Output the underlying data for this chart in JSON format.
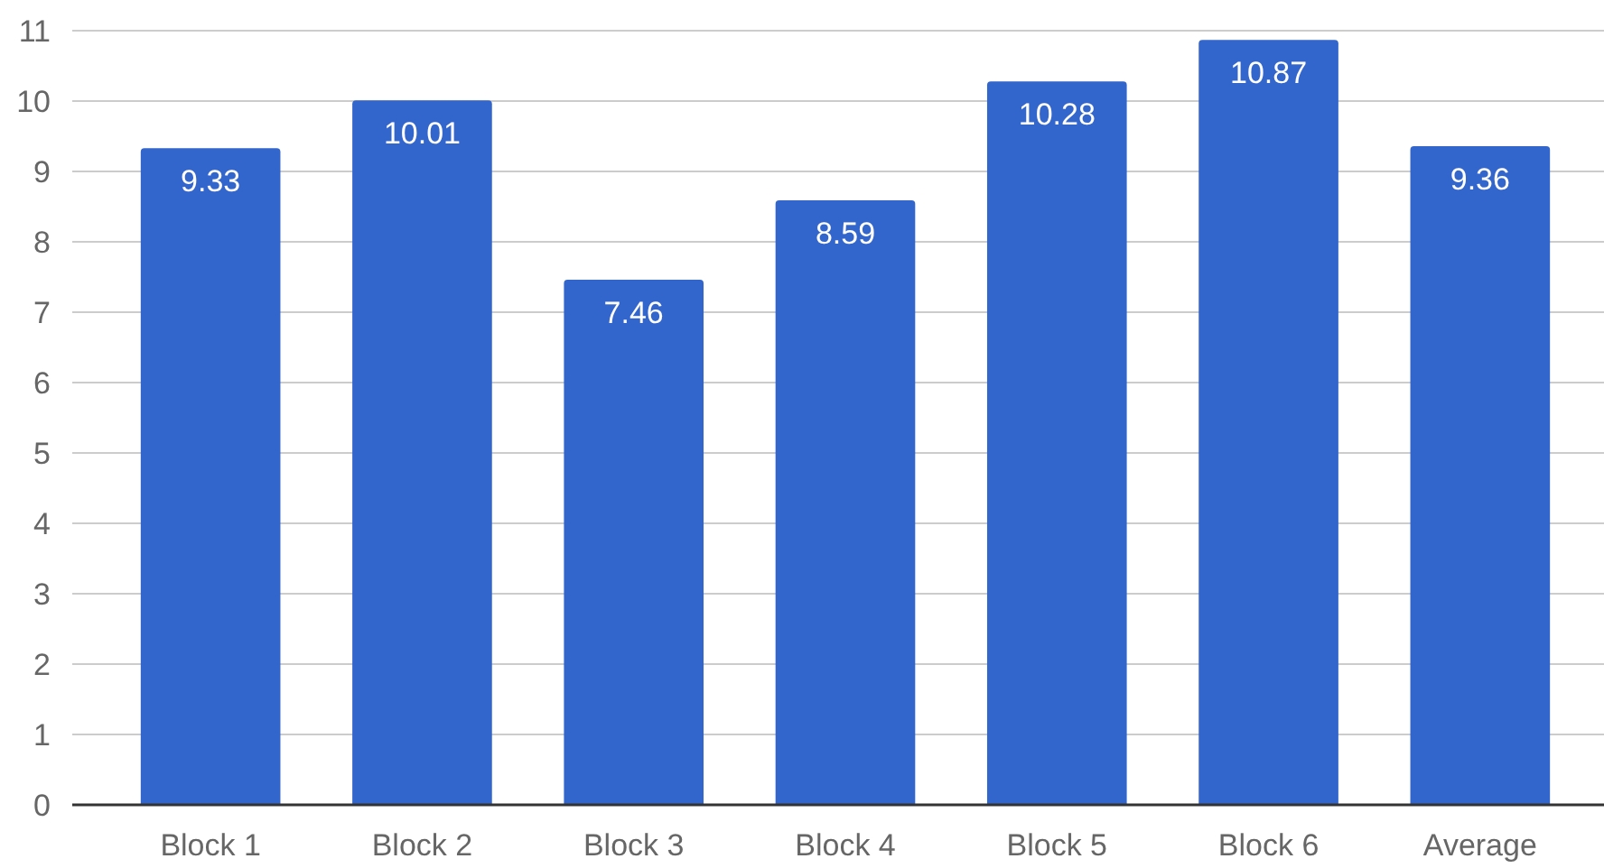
{
  "chart_data": {
    "type": "bar",
    "categories": [
      "Block 1",
      "Block 2",
      "Block 3",
      "Block 4",
      "Block 5",
      "Block 6",
      "Average"
    ],
    "values": [
      9.33,
      10.01,
      7.46,
      8.59,
      10.28,
      10.87,
      9.36
    ],
    "color": "#3366cc",
    "ylim": [
      0,
      11
    ],
    "yticks": [
      0,
      1,
      2,
      3,
      4,
      5,
      6,
      7,
      8,
      9,
      10,
      11
    ],
    "grid": "y",
    "data_labels": true
  }
}
